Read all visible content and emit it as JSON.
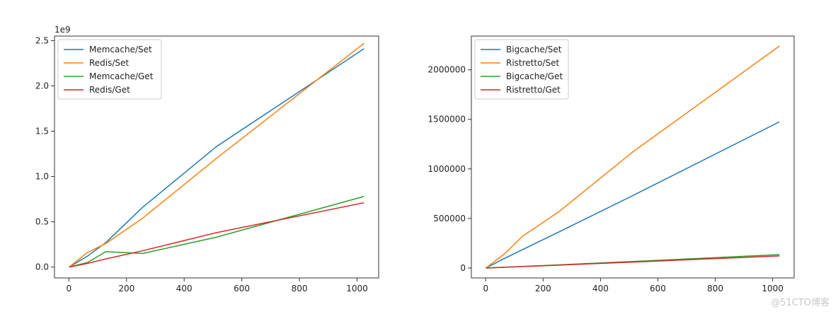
{
  "chart_data": [
    {
      "type": "line",
      "title": "",
      "xlabel": "",
      "ylabel": "",
      "offset_label": "1e9",
      "xlim": [
        -50,
        1075
      ],
      "ylim": [
        -0.12,
        2.55
      ],
      "xticks": [
        0,
        200,
        400,
        600,
        800,
        1000
      ],
      "xtick_labels": [
        "0",
        "200",
        "400",
        "600",
        "800",
        "1000"
      ],
      "yticks": [
        0,
        0.5,
        1.0,
        1.5,
        2.0,
        2.5
      ],
      "ytick_labels": [
        "0.0",
        "0.5",
        "1.0",
        "1.5",
        "2.0",
        "2.5"
      ],
      "grid": false,
      "legend": "top-left",
      "series": [
        {
          "name": "Memcache/Set",
          "color": "#1f77b4",
          "x": [
            1,
            64,
            128,
            256,
            512,
            1024
          ],
          "y": [
            0,
            0.12,
            0.27,
            0.66,
            1.33,
            2.41
          ]
        },
        {
          "name": "Redis/Set",
          "color": "#ff7f0e",
          "x": [
            1,
            64,
            128,
            256,
            512,
            1024
          ],
          "y": [
            0,
            0.16,
            0.26,
            0.54,
            1.2,
            2.47
          ]
        },
        {
          "name": "Memcache/Get",
          "color": "#2ca02c",
          "x": [
            1,
            64,
            128,
            256,
            512,
            1024
          ],
          "y": [
            0,
            0.05,
            0.17,
            0.15,
            0.33,
            0.78
          ]
        },
        {
          "name": "Redis/Get",
          "color": "#d62728",
          "x": [
            1,
            64,
            128,
            256,
            512,
            1024
          ],
          "y": [
            0,
            0.04,
            0.09,
            0.18,
            0.38,
            0.71
          ]
        }
      ]
    },
    {
      "type": "line",
      "title": "",
      "xlabel": "",
      "ylabel": "",
      "xlim": [
        -50,
        1075
      ],
      "ylim": [
        -100000,
        2340000
      ],
      "xticks": [
        0,
        200,
        400,
        600,
        800,
        1000
      ],
      "xtick_labels": [
        "0",
        "200",
        "400",
        "600",
        "800",
        "1000"
      ],
      "yticks": [
        0,
        500000,
        1000000,
        1500000,
        2000000
      ],
      "ytick_labels": [
        "0",
        "500000",
        "1000000",
        "1500000",
        "2000000"
      ],
      "grid": false,
      "legend": "top-left",
      "series": [
        {
          "name": "Bigcache/Set",
          "color": "#1f77b4",
          "x": [
            1,
            64,
            128,
            256,
            512,
            1024
          ],
          "y": [
            0,
            95000,
            185000,
            365000,
            730000,
            1475000
          ]
        },
        {
          "name": "Ristretto/Set",
          "color": "#ff7f0e",
          "x": [
            1,
            64,
            128,
            256,
            512,
            1024
          ],
          "y": [
            0,
            140000,
            320000,
            570000,
            1170000,
            2240000
          ]
        },
        {
          "name": "Bigcache/Get",
          "color": "#2ca02c",
          "x": [
            1,
            64,
            128,
            256,
            512,
            1024
          ],
          "y": [
            0,
            8000,
            16000,
            32000,
            66000,
            135000
          ]
        },
        {
          "name": "Ristretto/Get",
          "color": "#d62728",
          "x": [
            1,
            64,
            128,
            256,
            512,
            1024
          ],
          "y": [
            0,
            7000,
            15000,
            29000,
            60000,
            122000
          ]
        }
      ]
    }
  ],
  "watermark": "@51CTO博客"
}
